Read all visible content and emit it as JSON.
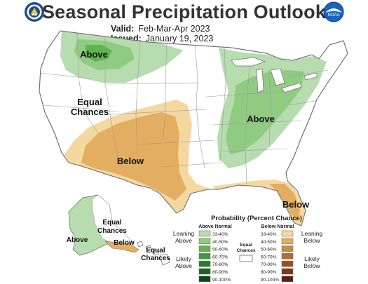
{
  "header": {
    "title": "Seasonal Precipitation Outlook",
    "valid_label": "Valid:",
    "valid_value": "Feb-Mar-Apr 2023",
    "issued_label": "Issued:",
    "issued_value": "January 19, 2023"
  },
  "logos": {
    "left": "department-of-commerce-seal",
    "right": "noaa-logo",
    "right_text": "NOAA"
  },
  "map_labels": {
    "above_northwest": "Above",
    "equal_chances_west_line1": "Equal",
    "equal_chances_west_line2": "Chances",
    "below_southwest": "Below",
    "above_ohio_valley": "Above",
    "below_florida": "Below",
    "alaska_above": "Above",
    "alaska_equal_line1": "Equal",
    "alaska_equal_line2": "Chances",
    "alaska_below": "Below",
    "hawaii_equal_line1": "Equal",
    "hawaii_equal_line2": "Chances"
  },
  "legend": {
    "title": "Probability (Percent Chance)",
    "above_header": "Above Normal",
    "below_header": "Below Normal",
    "leaning_above_line1": "Leaning",
    "leaning_above_line2": "Above",
    "likely_above_line1": "Likely",
    "likely_above_line2": "Above",
    "leaning_below_line1": "Leaning",
    "leaning_below_line2": "Below",
    "likely_below_line1": "Likely",
    "likely_below_line2": "Below",
    "equal_line1": "Equal",
    "equal_line2": "Chances",
    "above_bins": [
      {
        "label": "33-40%",
        "color": "#b7dcaf"
      },
      {
        "label": "40-50%",
        "color": "#8fcc82"
      },
      {
        "label": "50-60%",
        "color": "#5eb64f"
      },
      {
        "label": "60-70%",
        "color": "#3f9c3a"
      },
      {
        "label": "70-80%",
        "color": "#2d7d2e"
      },
      {
        "label": "80-90%",
        "color": "#1f6024"
      },
      {
        "label": "90-100%",
        "color": "#14421a"
      }
    ],
    "below_bins": [
      {
        "label": "33-40%",
        "color": "#f5d8a0"
      },
      {
        "label": "40-50%",
        "color": "#e3ae61"
      },
      {
        "label": "50-60%",
        "color": "#d18a3c"
      },
      {
        "label": "60-70%",
        "color": "#b86a2a"
      },
      {
        "label": "70-80%",
        "color": "#9b4e22"
      },
      {
        "label": "80-90%",
        "color": "#7b3819"
      },
      {
        "label": "90-100%",
        "color": "#552311"
      }
    ]
  },
  "colors": {
    "state_border": "#9a9a9a",
    "background": "#ffffff"
  }
}
